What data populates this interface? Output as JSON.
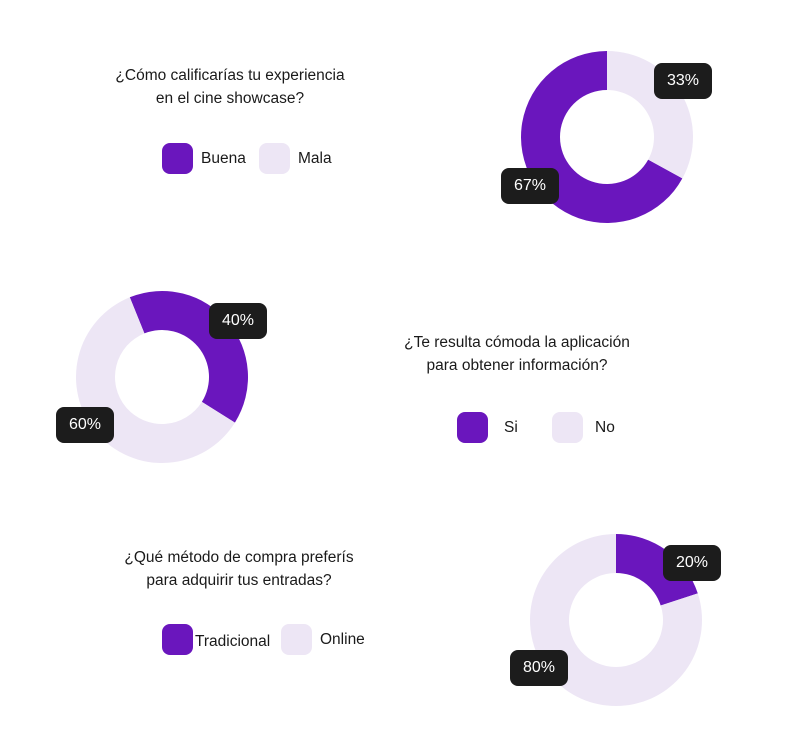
{
  "colors": {
    "primary": "#6a16bd",
    "secondary": "#ede6f5",
    "badge": "#1c1c1c"
  },
  "chart_data": [
    {
      "type": "pie",
      "title": "¿Cómo calificarías tu experiencia en el cine showcase?",
      "title_lines": [
        "¿Cómo calificarías tu experiencia",
        "en el cine showcase?"
      ],
      "categories": [
        "Buena",
        "Mala"
      ],
      "values": [
        67,
        33
      ],
      "labels": [
        "67%",
        "33%"
      ],
      "style": "donut"
    },
    {
      "type": "pie",
      "title": "¿Te resulta cómoda la aplicación para obtener información?",
      "title_lines": [
        "¿Te resulta cómoda la aplicación",
        "para obtener información?"
      ],
      "categories": [
        "Si",
        "No"
      ],
      "values": [
        40,
        60
      ],
      "labels": [
        "40%",
        "60%"
      ],
      "style": "donut"
    },
    {
      "type": "pie",
      "title": "¿Qué método de compra preferís para adquirir tus entradas?",
      "title_lines": [
        "¿Qué método de compra preferís",
        "para adquirir tus entradas?"
      ],
      "categories": [
        "Tradicional",
        "Online"
      ],
      "values": [
        20,
        80
      ],
      "labels": [
        "20%",
        "80%"
      ],
      "style": "donut"
    }
  ]
}
